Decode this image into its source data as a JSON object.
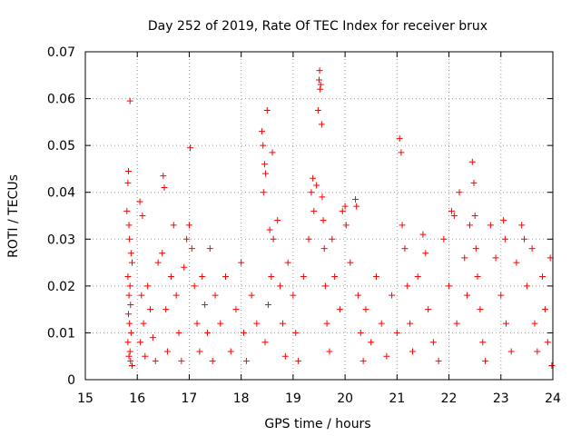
{
  "chart_data": {
    "type": "scatter",
    "title": "Day 252 of 2019, Rate Of TEC Index for receiver brux",
    "xlabel": "GPS time / hours",
    "ylabel": "ROTI / TECUs",
    "xlim": [
      15,
      24
    ],
    "ylim": [
      0,
      0.07
    ],
    "xticks": [
      15,
      16,
      17,
      18,
      19,
      20,
      21,
      22,
      23,
      24
    ],
    "xtick_labels": [
      "15",
      "16",
      "17",
      "18",
      "19",
      "20",
      "21",
      "22",
      "23",
      "24"
    ],
    "yticks": [
      0,
      0.01,
      0.02,
      0.03,
      0.04,
      0.05,
      0.06,
      0.07
    ],
    "ytick_labels": [
      "0",
      "0.01",
      "0.02",
      "0.03",
      "0.04",
      "0.05",
      "0.06",
      "0.07"
    ],
    "grid": true,
    "marker": "+",
    "marker_color": "#ff0000",
    "points": [
      [
        15.86,
        0.0595
      ],
      [
        15.83,
        0.0445
      ],
      [
        15.82,
        0.042
      ],
      [
        15.8,
        0.036
      ],
      [
        15.84,
        0.033
      ],
      [
        15.85,
        0.03
      ],
      [
        15.88,
        0.027
      ],
      [
        15.9,
        0.025
      ],
      [
        15.82,
        0.022
      ],
      [
        15.86,
        0.02
      ],
      [
        15.84,
        0.018
      ],
      [
        15.87,
        0.016
      ],
      [
        15.83,
        0.014
      ],
      [
        15.85,
        0.012
      ],
      [
        15.88,
        0.01
      ],
      [
        15.82,
        0.008
      ],
      [
        15.86,
        0.006
      ],
      [
        15.84,
        0.005
      ],
      [
        15.87,
        0.004
      ],
      [
        15.9,
        0.003
      ],
      [
        16.05,
        0.038
      ],
      [
        16.1,
        0.035
      ],
      [
        16.08,
        0.018
      ],
      [
        16.12,
        0.012
      ],
      [
        16.06,
        0.008
      ],
      [
        16.15,
        0.005
      ],
      [
        16.2,
        0.02
      ],
      [
        16.25,
        0.015
      ],
      [
        16.3,
        0.009
      ],
      [
        16.35,
        0.004
      ],
      [
        16.4,
        0.025
      ],
      [
        16.5,
        0.0435
      ],
      [
        16.52,
        0.041
      ],
      [
        16.48,
        0.027
      ],
      [
        16.55,
        0.015
      ],
      [
        16.58,
        0.006
      ],
      [
        16.65,
        0.022
      ],
      [
        16.7,
        0.033
      ],
      [
        16.75,
        0.018
      ],
      [
        16.8,
        0.01
      ],
      [
        16.85,
        0.004
      ],
      [
        16.9,
        0.024
      ],
      [
        16.95,
        0.03
      ],
      [
        17.02,
        0.0495
      ],
      [
        17.0,
        0.033
      ],
      [
        17.05,
        0.028
      ],
      [
        17.1,
        0.02
      ],
      [
        17.15,
        0.012
      ],
      [
        17.2,
        0.006
      ],
      [
        17.25,
        0.022
      ],
      [
        17.3,
        0.016
      ],
      [
        17.35,
        0.01
      ],
      [
        17.4,
        0.028
      ],
      [
        17.45,
        0.004
      ],
      [
        17.5,
        0.018
      ],
      [
        17.6,
        0.012
      ],
      [
        17.7,
        0.022
      ],
      [
        17.8,
        0.006
      ],
      [
        17.9,
        0.015
      ],
      [
        18.0,
        0.025
      ],
      [
        18.05,
        0.01
      ],
      [
        18.1,
        0.004
      ],
      [
        18.2,
        0.018
      ],
      [
        18.3,
        0.012
      ],
      [
        18.4,
        0.053
      ],
      [
        18.42,
        0.05
      ],
      [
        18.45,
        0.046
      ],
      [
        18.47,
        0.044
      ],
      [
        18.43,
        0.04
      ],
      [
        18.5,
        0.0575
      ],
      [
        18.55,
        0.032
      ],
      [
        18.6,
        0.0485
      ],
      [
        18.62,
        0.03
      ],
      [
        18.58,
        0.022
      ],
      [
        18.52,
        0.016
      ],
      [
        18.46,
        0.008
      ],
      [
        18.7,
        0.034
      ],
      [
        18.75,
        0.02
      ],
      [
        18.8,
        0.012
      ],
      [
        18.85,
        0.005
      ],
      [
        18.9,
        0.025
      ],
      [
        19.0,
        0.018
      ],
      [
        19.05,
        0.01
      ],
      [
        19.1,
        0.004
      ],
      [
        19.2,
        0.022
      ],
      [
        19.3,
        0.03
      ],
      [
        19.35,
        0.04
      ],
      [
        19.38,
        0.043
      ],
      [
        19.4,
        0.036
      ],
      [
        19.45,
        0.0415
      ],
      [
        19.48,
        0.0575
      ],
      [
        19.5,
        0.064
      ],
      [
        19.51,
        0.066
      ],
      [
        19.52,
        0.062
      ],
      [
        19.53,
        0.063
      ],
      [
        19.55,
        0.0545
      ],
      [
        19.56,
        0.039
      ],
      [
        19.58,
        0.034
      ],
      [
        19.6,
        0.028
      ],
      [
        19.62,
        0.02
      ],
      [
        19.65,
        0.012
      ],
      [
        19.7,
        0.006
      ],
      [
        19.75,
        0.03
      ],
      [
        19.8,
        0.022
      ],
      [
        19.9,
        0.015
      ],
      [
        19.95,
        0.036
      ],
      [
        20.0,
        0.037
      ],
      [
        20.02,
        0.033
      ],
      [
        20.1,
        0.025
      ],
      [
        20.2,
        0.0385
      ],
      [
        20.22,
        0.037
      ],
      [
        20.25,
        0.018
      ],
      [
        20.3,
        0.01
      ],
      [
        20.35,
        0.004
      ],
      [
        20.4,
        0.015
      ],
      [
        20.5,
        0.008
      ],
      [
        20.6,
        0.022
      ],
      [
        20.7,
        0.012
      ],
      [
        20.8,
        0.005
      ],
      [
        20.9,
        0.018
      ],
      [
        21.0,
        0.01
      ],
      [
        21.05,
        0.0515
      ],
      [
        21.08,
        0.0485
      ],
      [
        21.1,
        0.033
      ],
      [
        21.15,
        0.028
      ],
      [
        21.2,
        0.02
      ],
      [
        21.25,
        0.012
      ],
      [
        21.3,
        0.006
      ],
      [
        21.4,
        0.022
      ],
      [
        21.5,
        0.031
      ],
      [
        21.55,
        0.027
      ],
      [
        21.6,
        0.015
      ],
      [
        21.7,
        0.008
      ],
      [
        21.8,
        0.004
      ],
      [
        21.9,
        0.03
      ],
      [
        22.0,
        0.02
      ],
      [
        22.05,
        0.036
      ],
      [
        22.1,
        0.035
      ],
      [
        22.15,
        0.012
      ],
      [
        22.2,
        0.04
      ],
      [
        22.3,
        0.026
      ],
      [
        22.35,
        0.018
      ],
      [
        22.4,
        0.033
      ],
      [
        22.45,
        0.0465
      ],
      [
        22.48,
        0.042
      ],
      [
        22.5,
        0.035
      ],
      [
        22.52,
        0.028
      ],
      [
        22.55,
        0.022
      ],
      [
        22.6,
        0.015
      ],
      [
        22.65,
        0.008
      ],
      [
        22.7,
        0.004
      ],
      [
        22.8,
        0.033
      ],
      [
        22.9,
        0.026
      ],
      [
        23.0,
        0.018
      ],
      [
        23.05,
        0.034
      ],
      [
        23.08,
        0.03
      ],
      [
        23.1,
        0.012
      ],
      [
        23.2,
        0.006
      ],
      [
        23.3,
        0.025
      ],
      [
        23.4,
        0.033
      ],
      [
        23.45,
        0.03
      ],
      [
        23.5,
        0.02
      ],
      [
        23.6,
        0.028
      ],
      [
        23.65,
        0.012
      ],
      [
        23.7,
        0.006
      ],
      [
        23.8,
        0.022
      ],
      [
        23.85,
        0.015
      ],
      [
        23.9,
        0.008
      ],
      [
        23.95,
        0.026
      ],
      [
        23.98,
        0.003
      ]
    ]
  }
}
